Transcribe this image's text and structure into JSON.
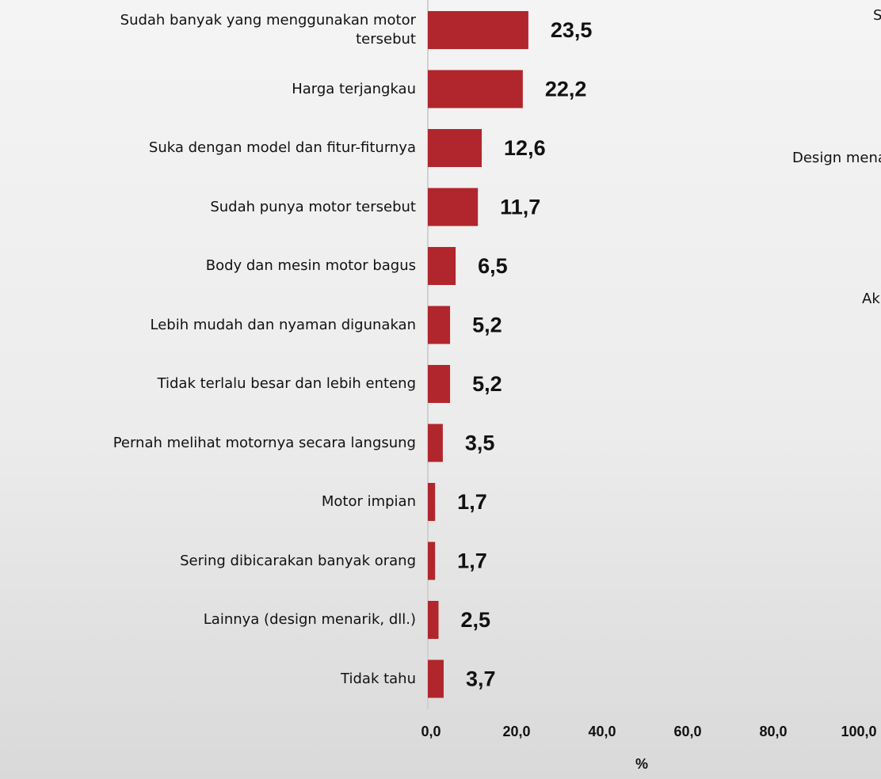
{
  "chart_data": {
    "type": "bar",
    "orientation": "horizontal",
    "categories": [
      "Sudah banyak yang menggunakan motor tersebut",
      "Harga terjangkau",
      "Suka dengan model dan fitur-fiturnya",
      "Sudah punya motor tersebut",
      "Body dan mesin motor bagus",
      "Lebih mudah dan nyaman digunakan",
      "Tidak terlalu besar dan lebih enteng",
      "Pernah melihat motornya secara langsung",
      "Motor impian",
      "Sering dibicarakan banyak orang",
      "Lainnya (design menarik, dll.)",
      "Tidak tahu"
    ],
    "values": [
      23.5,
      22.2,
      12.6,
      11.7,
      6.5,
      5.2,
      5.2,
      3.5,
      1.7,
      1.7,
      2.5,
      3.7
    ],
    "value_labels": [
      "23,5",
      "22,2",
      "12,6",
      "11,7",
      "6,5",
      "5,2",
      "5,2",
      "3,5",
      "1,7",
      "1,7",
      "2,5",
      "3,7"
    ],
    "color": "#b1262c",
    "xlim": [
      0,
      100
    ],
    "xticks": [
      {
        "value": 0,
        "label": "0,0"
      },
      {
        "value": 20,
        "label": "20,0"
      },
      {
        "value": 40,
        "label": "40,0"
      },
      {
        "value": 60,
        "label": "60,0"
      },
      {
        "value": 80,
        "label": "80,0"
      },
      {
        "value": 100,
        "label": "100,0"
      }
    ],
    "x_label": "%",
    "grid": false
  },
  "clipped_labels": [
    "S",
    "Design mena",
    "Ak"
  ]
}
